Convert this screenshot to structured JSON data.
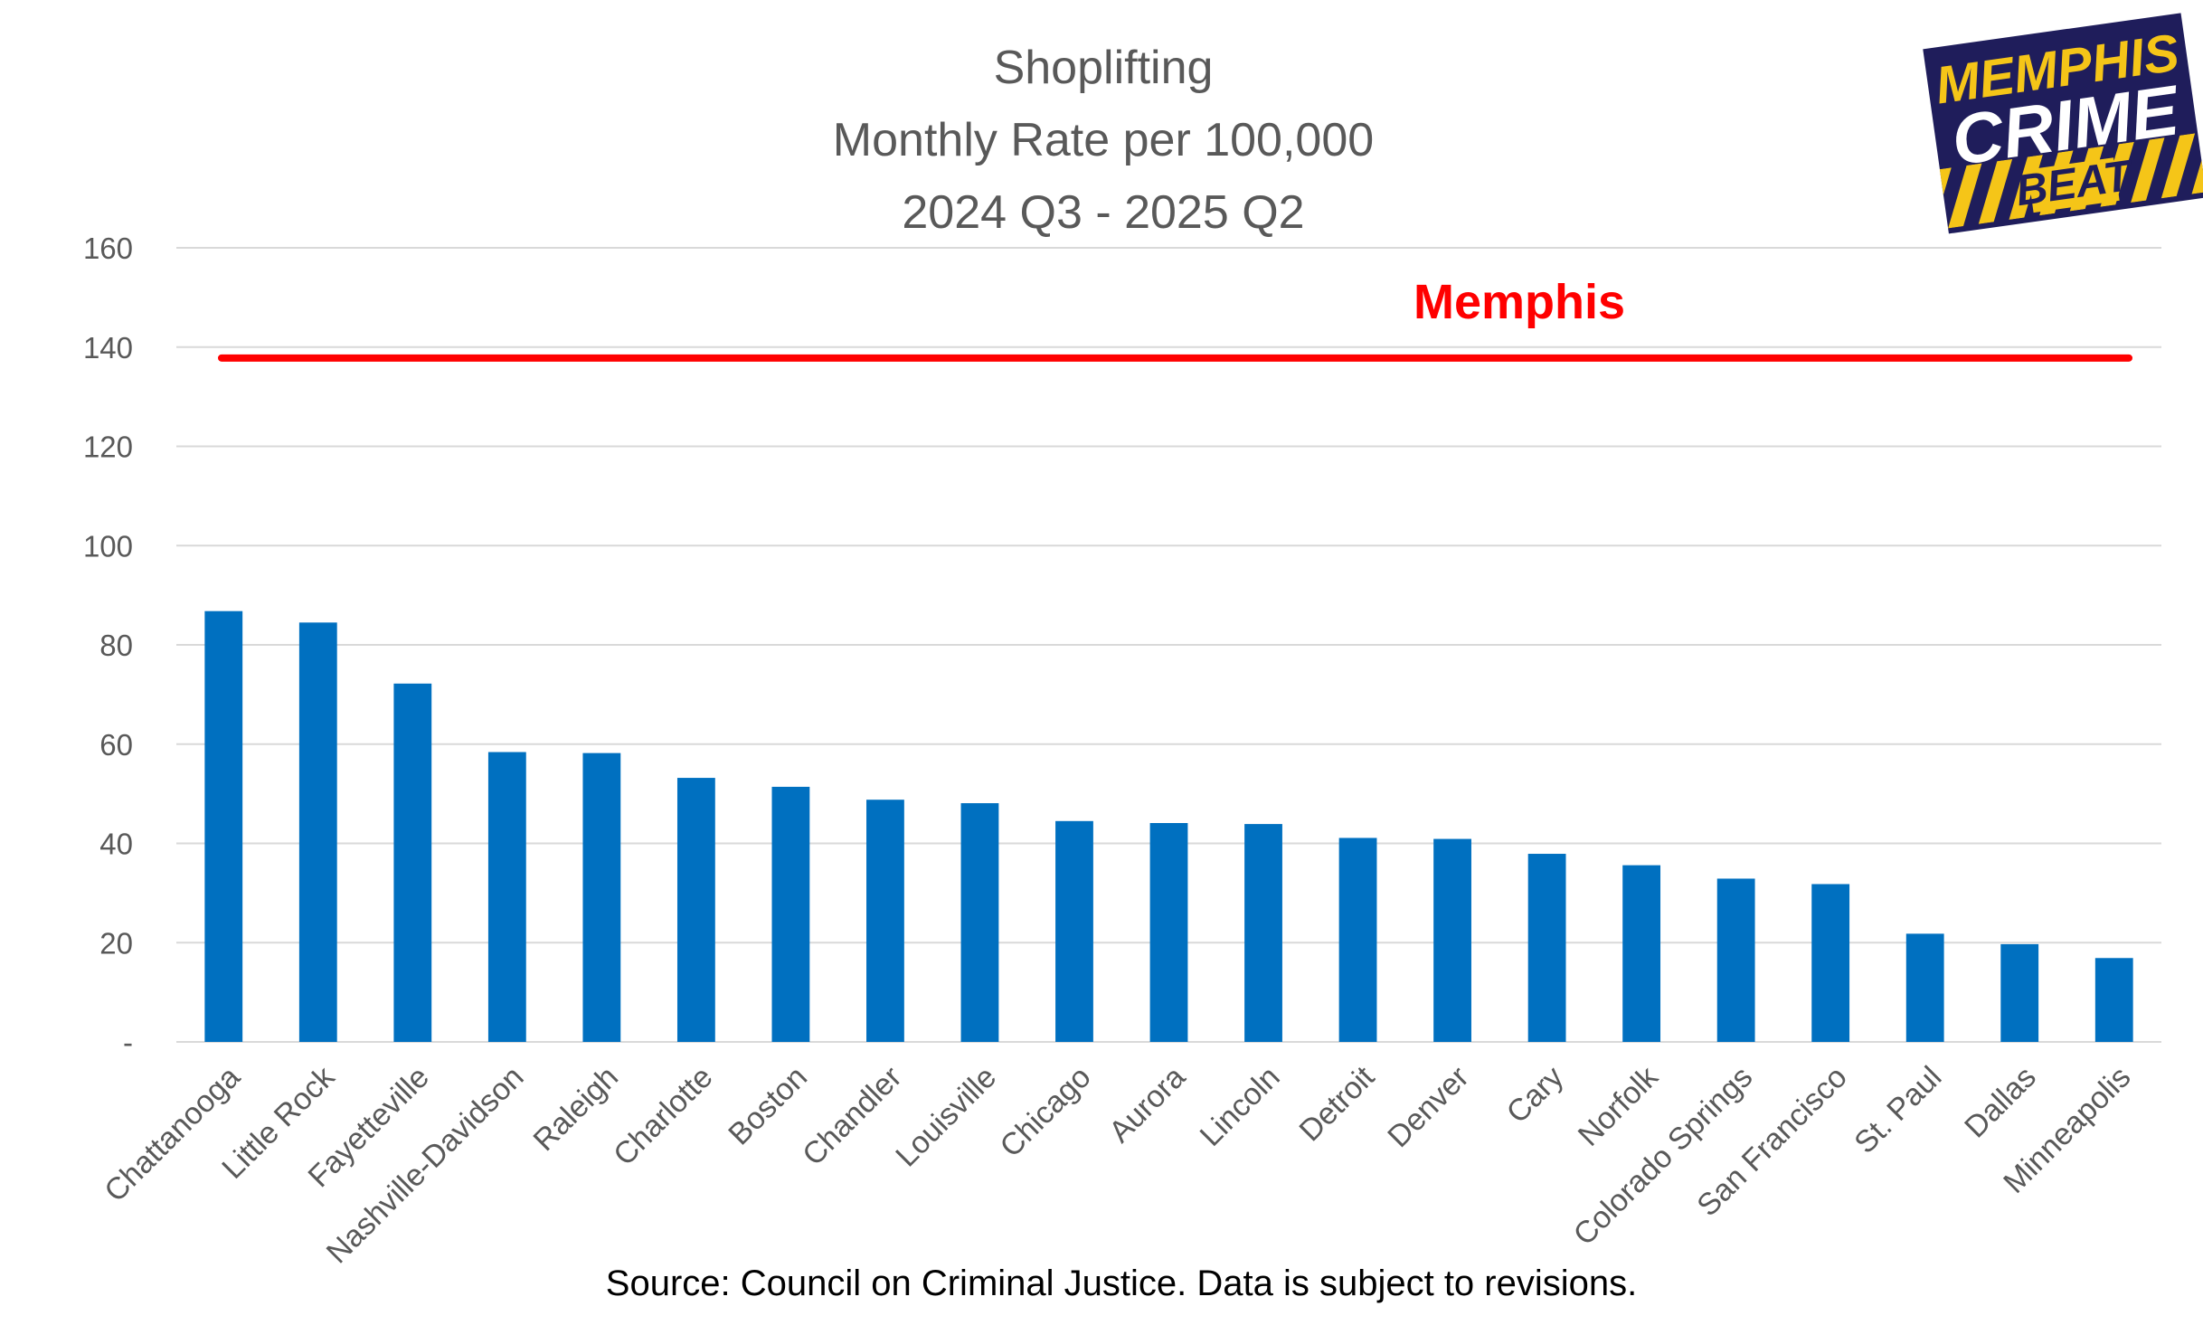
{
  "chart_data": {
    "type": "bar",
    "title_lines": [
      "Shoplifting",
      "Monthly Rate per 100,000",
      "2024 Q3 - 2025 Q2"
    ],
    "categories": [
      "Chattanooga",
      "Little Rock",
      "Fayetteville",
      "Nashville-Davidson",
      "Raleigh",
      "Charlotte",
      "Boston",
      "Chandler",
      "Louisville",
      "Chicago",
      "Aurora",
      "Lincoln",
      "Detroit",
      "Denver",
      "Cary",
      "Norfolk",
      "Colorado Springs",
      "San Francisco",
      "St. Paul",
      "Dallas",
      "Minneapolis"
    ],
    "values": [
      86.8,
      84.5,
      72.2,
      58.4,
      58.2,
      53.2,
      51.4,
      48.8,
      48.1,
      44.5,
      44.1,
      43.9,
      41.1,
      40.9,
      37.9,
      35.6,
      32.9,
      31.8,
      21.8,
      19.7,
      16.9
    ],
    "ylim": [
      0,
      160
    ],
    "yticks": [
      0,
      20,
      40,
      60,
      80,
      100,
      120,
      140,
      160
    ],
    "ytick_labels": [
      "-",
      "20",
      "40",
      "60",
      "80",
      "100",
      "120",
      "140",
      "160"
    ],
    "grid": true,
    "xlabel": "",
    "ylabel": "",
    "bar_color": "#0070c0",
    "reference_line": {
      "label": "Memphis",
      "value": 137.8,
      "color": "#ff0000"
    }
  },
  "source_note": "Source: Council on Criminal Justice.  Data is subject to revisions.",
  "logo": {
    "lines": [
      "MEMPHIS",
      "CRIME",
      "BEAT"
    ],
    "colors": {
      "navy": "#1f1d5b",
      "yellow": "#f5c518"
    }
  }
}
